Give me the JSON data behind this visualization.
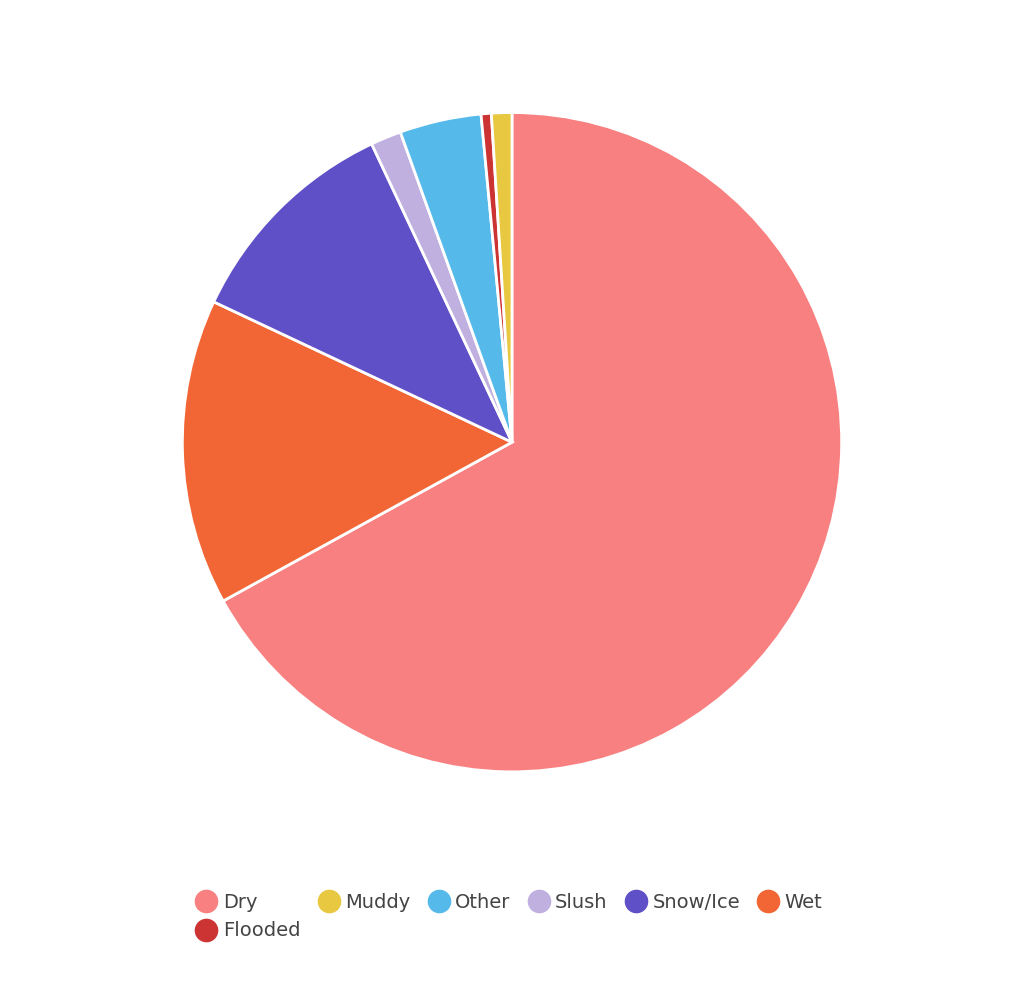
{
  "labels": [
    "Dry",
    "Wet",
    "Snow/Ice",
    "Slush",
    "Other",
    "Flooded",
    "Muddy"
  ],
  "values": [
    67.0,
    15.0,
    11.0,
    1.5,
    4.0,
    0.5,
    1.0
  ],
  "colors": [
    "#F88080",
    "#F26535",
    "#6050C8",
    "#C0B0E0",
    "#55BAEA",
    "#CC3333",
    "#E8C840"
  ],
  "legend_order_labels": [
    "Dry",
    "Flooded",
    "Muddy",
    "Other",
    "Slush",
    "Snow/Ice",
    "Wet"
  ],
  "legend_order_colors": [
    "#F88080",
    "#CC3333",
    "#E8C840",
    "#55BAEA",
    "#C0B0E0",
    "#6050C8",
    "#F26535"
  ],
  "background_color": "#FFFFFF",
  "legend_fontsize": 14,
  "startangle": 90,
  "wedge_edge_color": "#FFFFFF",
  "wedge_linewidth": 2
}
